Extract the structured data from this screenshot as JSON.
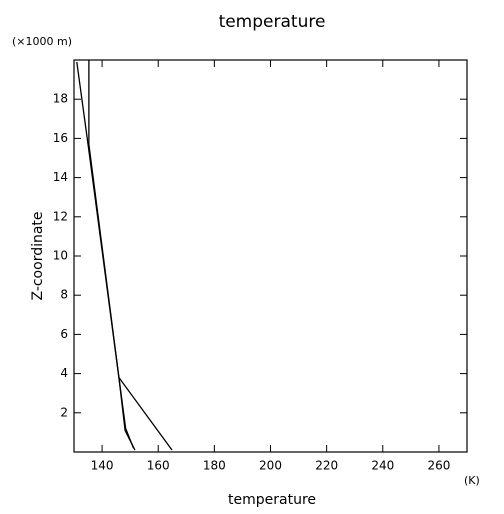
{
  "chart_data": {
    "type": "line",
    "title": "temperature",
    "x_label": "temperature",
    "x_unit": "(K)",
    "y_label": "Z-coordinate",
    "y_unit": "(×1000 m)",
    "xlim": [
      130,
      270
    ],
    "ylim": [
      0,
      20
    ],
    "xticks": [
      140,
      160,
      180,
      200,
      220,
      240,
      260
    ],
    "yticks": [
      2,
      4,
      6,
      8,
      10,
      12,
      14,
      16,
      18
    ],
    "color": "#000000",
    "series": [
      {
        "x": [
          131,
          135,
          146,
          164.9
        ],
        "values": [
          19.9,
          15.7,
          3.8,
          0.1
        ]
      },
      {
        "x": [
          135.3,
          135.3,
          146,
          148.2,
          151.7
        ],
        "values": [
          20,
          15.7,
          3.8,
          1.1,
          0.1
        ]
      },
      {
        "x": [
          146,
          148.4,
          151.2
        ],
        "values": [
          3.8,
          1.2,
          0.2
        ]
      }
    ]
  }
}
